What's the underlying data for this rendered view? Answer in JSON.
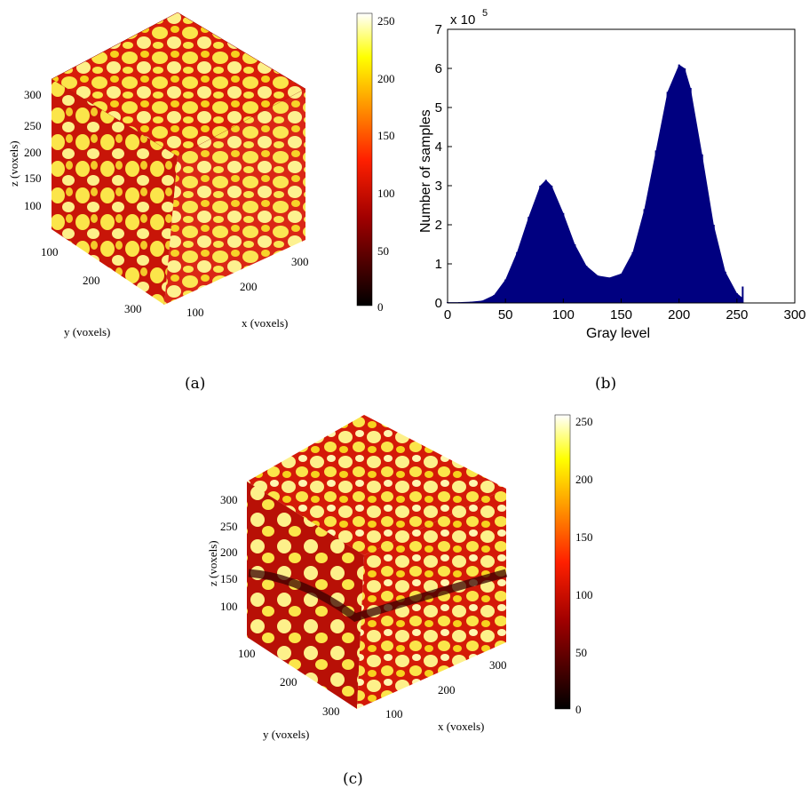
{
  "panel_a": {
    "caption": "(a)",
    "z_axis_label": "z (voxels)",
    "y_axis_label": "y (voxels)",
    "x_axis_label": "x (voxels)",
    "z_ticks": [
      "100",
      "150",
      "200",
      "250",
      "300"
    ],
    "y_ticks": [
      "100",
      "200",
      "300"
    ],
    "x_ticks": [
      "100",
      "200",
      "300"
    ],
    "colorbar_ticks": [
      "0",
      "50",
      "100",
      "150",
      "200",
      "250"
    ]
  },
  "panel_b": {
    "caption": "(b)",
    "exponent_label": "x 10",
    "exponent_power": "5"
  },
  "panel_c": {
    "caption": "(c)",
    "z_axis_label": "z (voxels)",
    "y_axis_label": "y (voxels)",
    "x_axis_label": "x (voxels)",
    "z_ticks": [
      "100",
      "150",
      "200",
      "250",
      "300"
    ],
    "y_ticks": [
      "100",
      "200",
      "300"
    ],
    "x_ticks": [
      "100",
      "200",
      "300"
    ],
    "colorbar_ticks": [
      "0",
      "50",
      "100",
      "150",
      "200",
      "250"
    ]
  },
  "colors": {
    "histogram_fill": "#000080",
    "cube_matrix": "#d81c0a",
    "cube_fiber": "#fbe54a"
  },
  "chart_data": {
    "type": "bar",
    "title": "",
    "xlabel": "Gray level",
    "ylabel": "Number of samples",
    "xlim": [
      0,
      300
    ],
    "ylim": [
      0,
      7
    ],
    "y_multiplier": "x 10^5",
    "x_ticks": [
      "0",
      "50",
      "100",
      "150",
      "200",
      "250",
      "300"
    ],
    "y_ticks": [
      "0",
      "1",
      "2",
      "3",
      "4",
      "5",
      "6",
      "7"
    ],
    "x": [
      0,
      10,
      20,
      30,
      40,
      50,
      60,
      70,
      80,
      85,
      90,
      100,
      110,
      120,
      130,
      140,
      150,
      160,
      170,
      180,
      190,
      200,
      205,
      210,
      220,
      230,
      240,
      250,
      254,
      255
    ],
    "values": [
      0.02,
      0.02,
      0.03,
      0.06,
      0.2,
      0.6,
      1.3,
      2.2,
      3.0,
      3.15,
      3.0,
      2.3,
      1.5,
      0.95,
      0.7,
      0.65,
      0.75,
      1.3,
      2.4,
      3.9,
      5.4,
      6.1,
      6.0,
      5.5,
      3.8,
      2.0,
      0.8,
      0.25,
      0.15,
      0.42
    ]
  }
}
